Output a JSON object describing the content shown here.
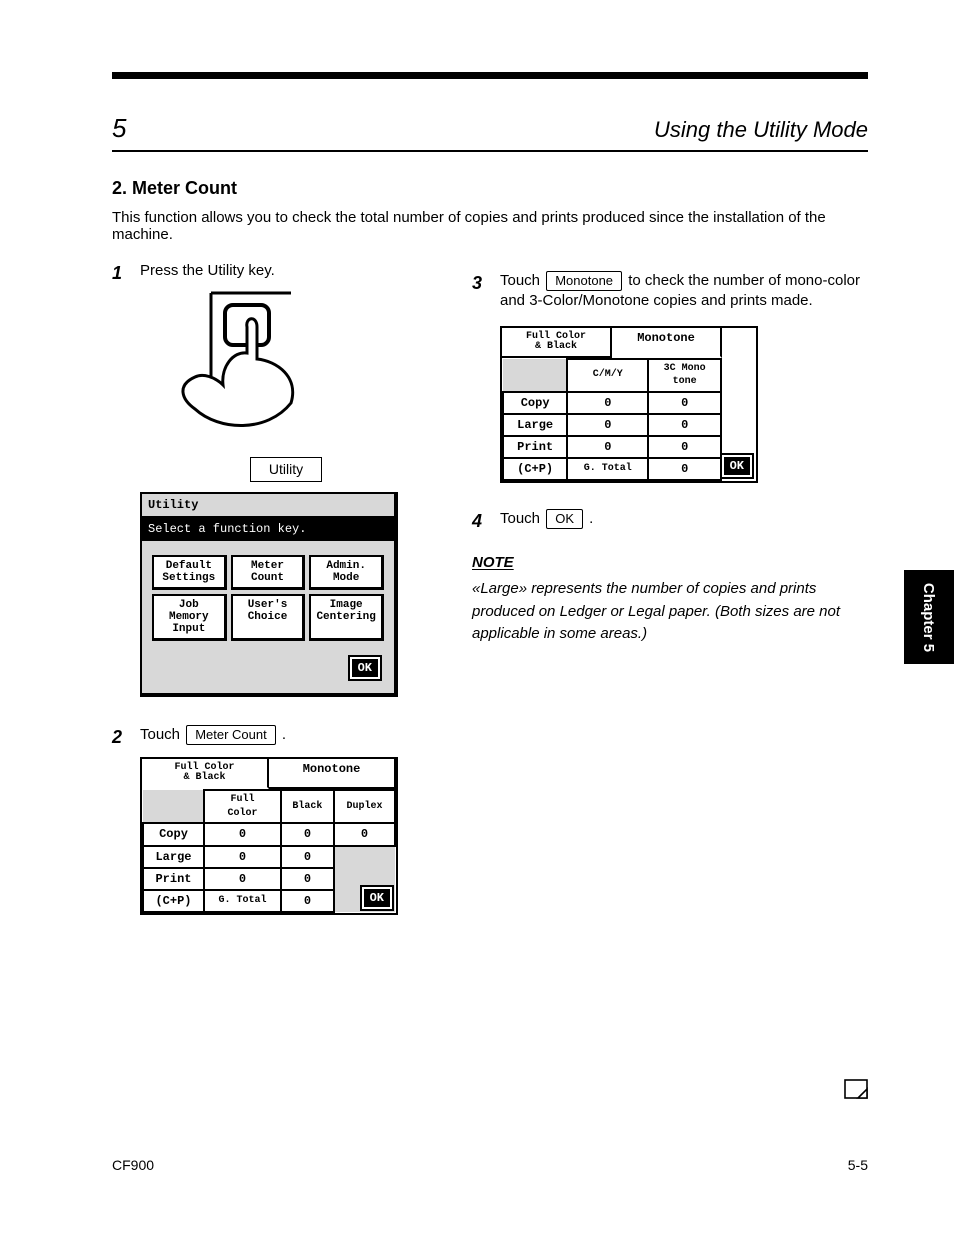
{
  "chapter": {
    "num": "5",
    "title": "Using the Utility Mode"
  },
  "heading": "2. Meter Count",
  "subtext": "This function allows you to check the total number of copies and prints produced since the installation of the machine.",
  "side_tab": "Chapter 5",
  "footer_page": "5-5",
  "footer_model": "CF900",
  "step1": {
    "text1": "Press the Utility key.",
    "label": "Utility",
    "lcd_title": "Utility",
    "lcd_sub": "Select a function key.",
    "btns": [
      "Default\nSettings",
      "Meter\nCount",
      "Admin.\nMode",
      "Job Memory\nInput",
      "User's\nChoice",
      "Image\nCentering"
    ],
    "ok": "OK"
  },
  "step2": {
    "text_a": "Touch ",
    "key": "Meter Count",
    "text_b": ".",
    "tabs": [
      "Full Color\n& Black",
      "Monotone"
    ],
    "cols": [
      "",
      "Full\nColor",
      "Black",
      "Duplex"
    ],
    "rows": [
      [
        "Copy",
        "0",
        "0",
        "0"
      ],
      [
        "Large",
        "0",
        "0",
        ""
      ],
      [
        "Print",
        "0",
        "0",
        ""
      ],
      [
        "(C+P)",
        "G. Total",
        "0",
        ""
      ]
    ],
    "ok": "OK"
  },
  "step3": {
    "text_a": "Touch ",
    "key": "Monotone",
    "text_b": " to check the number of mono-color and 3-Color/Monotone copies and prints made.",
    "tabs": [
      "Full Color\n& Black",
      "Monotone"
    ],
    "cols": [
      "",
      "C/M/Y",
      "3C Mono\ntone"
    ],
    "rows": [
      [
        "Copy",
        "0",
        "0"
      ],
      [
        "Large",
        "0",
        "0"
      ],
      [
        "Print",
        "0",
        "0"
      ],
      [
        "(C+P)",
        "G. Total",
        "0"
      ]
    ],
    "ok": "OK"
  },
  "step4": {
    "text_a": "Touch ",
    "key": "OK",
    "text_b": "."
  },
  "note": {
    "head": "NOTE",
    "body": "«Large» represents the number of copies and prints produced on Ledger or Legal paper. (Both sizes are not applicable in some areas.)"
  }
}
